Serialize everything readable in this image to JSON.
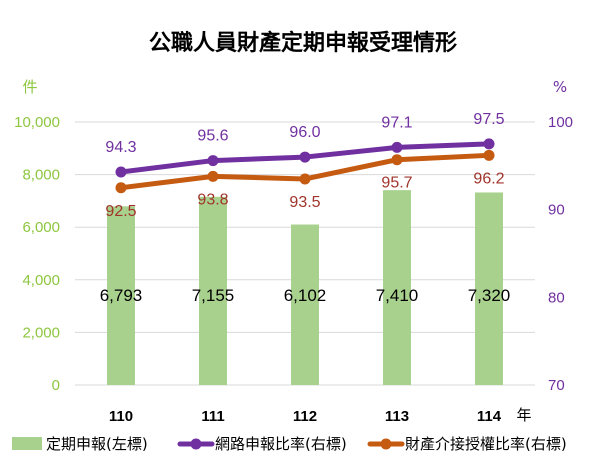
{
  "chart_data": {
    "type": "bar",
    "title": "公職人員財產定期申報受理情形",
    "categories": [
      "110",
      "111",
      "112",
      "113",
      "114"
    ],
    "x_unit": "年",
    "y_left_unit": "件",
    "y_right_unit": "%",
    "y_left_ticks": [
      "0",
      "2,000",
      "4,000",
      "6,000",
      "8,000",
      "10,000"
    ],
    "y_right_ticks": [
      "70",
      "80",
      "90",
      "100"
    ],
    "ylim_left": [
      0,
      10000
    ],
    "ylim_right": [
      70,
      100
    ],
    "series": [
      {
        "name": "定期申報(左標)",
        "kind": "bar",
        "axis": "left",
        "color": "#a9d18e",
        "values": [
          6793,
          7155,
          6102,
          7410,
          7320
        ],
        "labels": [
          "6,793",
          "7,155",
          "6,102",
          "7,410",
          "7,320"
        ]
      },
      {
        "name": "網路申報比率(右標)",
        "kind": "line",
        "axis": "right",
        "color": "#7030a0",
        "values": [
          94.3,
          95.6,
          96.0,
          97.1,
          97.5
        ],
        "labels": [
          "94.3",
          "95.6",
          "96.0",
          "97.1",
          "97.5"
        ]
      },
      {
        "name": "財產介接授權比率(右標)",
        "kind": "line",
        "axis": "right",
        "color": "#c55a11",
        "values": [
          92.5,
          93.8,
          93.5,
          95.7,
          96.2
        ],
        "labels": [
          "92.5",
          "93.8",
          "93.5",
          "95.7",
          "96.2"
        ]
      }
    ]
  }
}
